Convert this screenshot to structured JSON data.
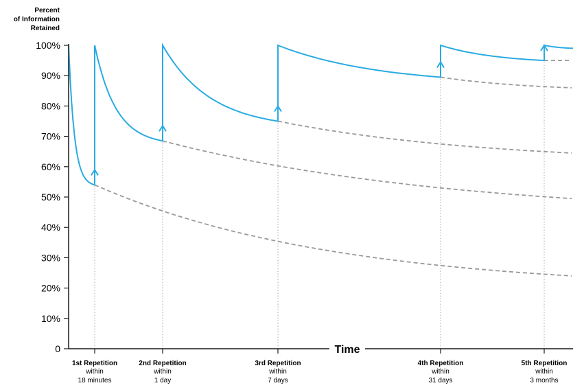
{
  "chart_data": {
    "type": "line",
    "ylabel": [
      "Percent",
      "of Information",
      "Retained"
    ],
    "xlabel": "Time",
    "ylim": [
      0,
      100
    ],
    "yticks": [
      "0",
      "10%",
      "20%",
      "30%",
      "40%",
      "50%",
      "60%",
      "70%",
      "80%",
      "90%",
      "100%"
    ],
    "grid": false,
    "repetitions": [
      {
        "title": "1st Repetition",
        "within": "within",
        "interval": "18 minutes",
        "retained_before": 54
      },
      {
        "title": "2nd Repetition",
        "within": "within",
        "interval": "1 day",
        "retained_before": 68.5
      },
      {
        "title": "3rd Repetition",
        "within": "within",
        "interval": "7 days",
        "retained_before": 75
      },
      {
        "title": "4th Repetition",
        "within": "within",
        "interval": "31 days",
        "retained_before": 89.5
      },
      {
        "title": "5th Repetition",
        "within": "within",
        "interval": "3 months",
        "retained_before": 95
      }
    ],
    "dashed_curves_end_values": [
      24,
      49.5,
      64.5,
      86,
      95
    ],
    "colors": {
      "retention_curve": "#29abe2",
      "dashed_curve": "#999999",
      "guide_line": "#aaaaaa",
      "axis": "#1a1a1a"
    }
  }
}
